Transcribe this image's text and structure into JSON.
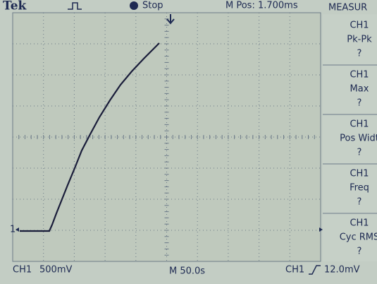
{
  "header": {
    "brand": "Tek",
    "status": "Stop",
    "position": "M Pos: 1.700ms",
    "menu_title": "MEASUR"
  },
  "measurements": [
    {
      "source": "CH1",
      "name": "Pk-Pk",
      "value": "?"
    },
    {
      "source": "CH1",
      "name": "Max",
      "value": "?"
    },
    {
      "source": "CH1",
      "name": "Pos Widt",
      "value": "?"
    },
    {
      "source": "CH1",
      "name": "Freq",
      "value": "?"
    },
    {
      "source": "CH1",
      "name": "Cyc RMS",
      "value": "?"
    }
  ],
  "ground_marker": "1",
  "footer": {
    "channel": "CH1",
    "volts_per_div": "500mV",
    "timebase": "M 50.0s",
    "trigger_source": "CH1",
    "trigger_level": "12.0mV"
  }
}
